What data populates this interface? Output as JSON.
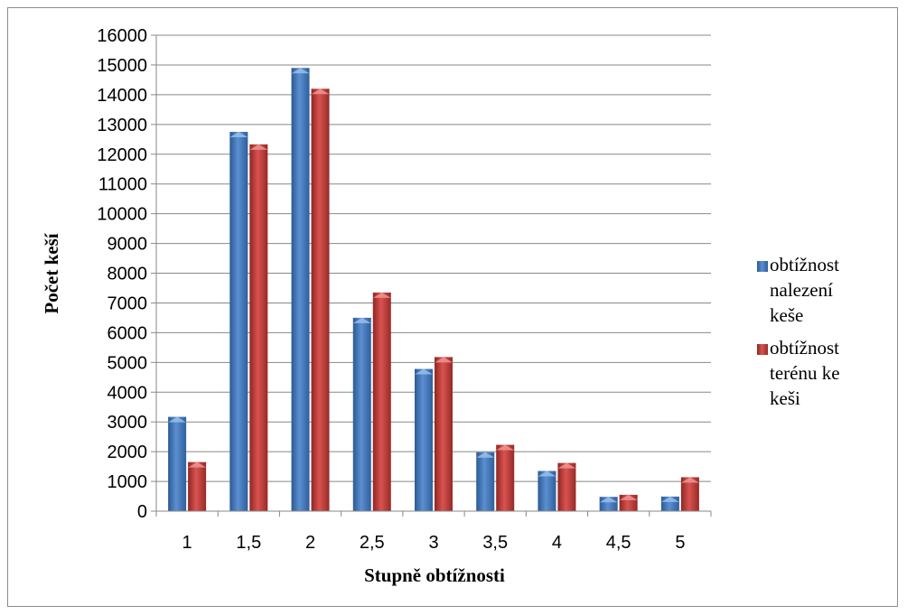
{
  "chart_data": {
    "type": "bar",
    "xlabel": "Stupně obtížnosti",
    "ylabel": "Počet keší",
    "categories": [
      "1",
      "1,5",
      "2",
      "2,5",
      "3",
      "3,5",
      "4",
      "4,5",
      "5"
    ],
    "ylim": [
      0,
      16000
    ],
    "ytick_step": 1000,
    "grid": true,
    "legend_position": "right",
    "series": [
      {
        "name": "obtížnost nalezení keše",
        "legend_lines": [
          "obtížnost",
          "nalezení",
          "keše"
        ],
        "color": "#4f81bd",
        "values": [
          3170,
          12750,
          14900,
          6500,
          4780,
          1980,
          1350,
          480,
          490
        ]
      },
      {
        "name": "obtížnost terénu ke keši",
        "legend_lines": [
          "obtížnost",
          "terénu ke",
          "keši"
        ],
        "color": "#c0504d",
        "values": [
          1650,
          12330,
          14200,
          7350,
          5180,
          2230,
          1620,
          550,
          1140
        ]
      }
    ]
  }
}
